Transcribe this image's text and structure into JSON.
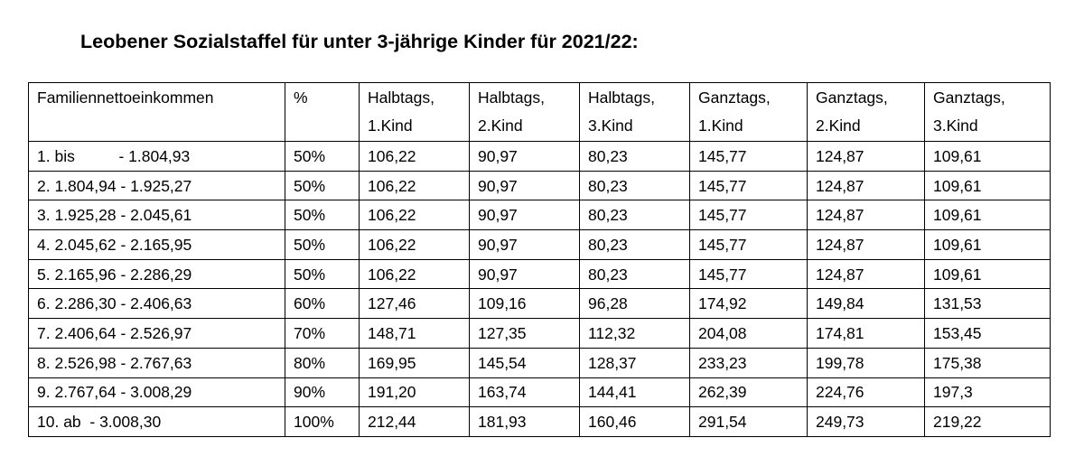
{
  "title": "Leobener Sozialstaffel für unter 3-jährige Kinder für 2021/22:",
  "table": {
    "headers": [
      {
        "line1": "Familiennettoeinkommen",
        "line2": ""
      },
      {
        "line1": "%",
        "line2": ""
      },
      {
        "line1": "Halbtags,",
        "line2": "1.Kind"
      },
      {
        "line1": "Halbtags,",
        "line2": "2.Kind"
      },
      {
        "line1": "Halbtags,",
        "line2": "3.Kind"
      },
      {
        "line1": "Ganztags,",
        "line2": "1.Kind"
      },
      {
        "line1": "Ganztags,",
        "line2": "2.Kind"
      },
      {
        "line1": "Ganztags,",
        "line2": "3.Kind"
      }
    ],
    "rows": [
      {
        "income": "1. bis          - 1.804,93",
        "percent": "50%",
        "h1": "106,22",
        "h2": "90,97",
        "h3": "80,23",
        "g1": "145,77",
        "g2": "124,87",
        "g3": "109,61"
      },
      {
        "income": "2. 1.804,94 - 1.925,27",
        "percent": "50%",
        "h1": "106,22",
        "h2": "90,97",
        "h3": "80,23",
        "g1": "145,77",
        "g2": "124,87",
        "g3": "109,61"
      },
      {
        "income": "3. 1.925,28 - 2.045,61",
        "percent": "50%",
        "h1": "106,22",
        "h2": "90,97",
        "h3": "80,23",
        "g1": "145,77",
        "g2": "124,87",
        "g3": "109,61"
      },
      {
        "income": "4. 2.045,62 - 2.165,95",
        "percent": "50%",
        "h1": "106,22",
        "h2": "90,97",
        "h3": "80,23",
        "g1": "145,77",
        "g2": "124,87",
        "g3": "109,61"
      },
      {
        "income": "5. 2.165,96 - 2.286,29",
        "percent": "50%",
        "h1": "106,22",
        "h2": "90,97",
        "h3": "80,23",
        "g1": "145,77",
        "g2": "124,87",
        "g3": "109,61"
      },
      {
        "income": "6. 2.286,30 - 2.406,63",
        "percent": "60%",
        "h1": "127,46",
        "h2": "109,16",
        "h3": "96,28",
        "g1": "174,92",
        "g2": "149,84",
        "g3": "131,53"
      },
      {
        "income": "7. 2.406,64 - 2.526,97",
        "percent": "70%",
        "h1": "148,71",
        "h2": "127,35",
        "h3": "112,32",
        "g1": "204,08",
        "g2": "174,81",
        "g3": "153,45"
      },
      {
        "income": "8. 2.526,98 - 2.767,63",
        "percent": "80%",
        "h1": "169,95",
        "h2": "145,54",
        "h3": "128,37",
        "g1": "233,23",
        "g2": "199,78",
        "g3": "175,38"
      },
      {
        "income": "9. 2.767,64 - 3.008,29",
        "percent": "90%",
        "h1": "191,20",
        "h2": "163,74",
        "h3": "144,41",
        "g1": "262,39",
        "g2": "224,76",
        "g3": "197,3"
      },
      {
        "income": "10. ab  - 3.008,30",
        "percent": "100%",
        "h1": "212,44",
        "h2": "181,93",
        "h3": "160,46",
        "g1": "291,54",
        "g2": "249,73",
        "g3": "219,22"
      }
    ]
  }
}
